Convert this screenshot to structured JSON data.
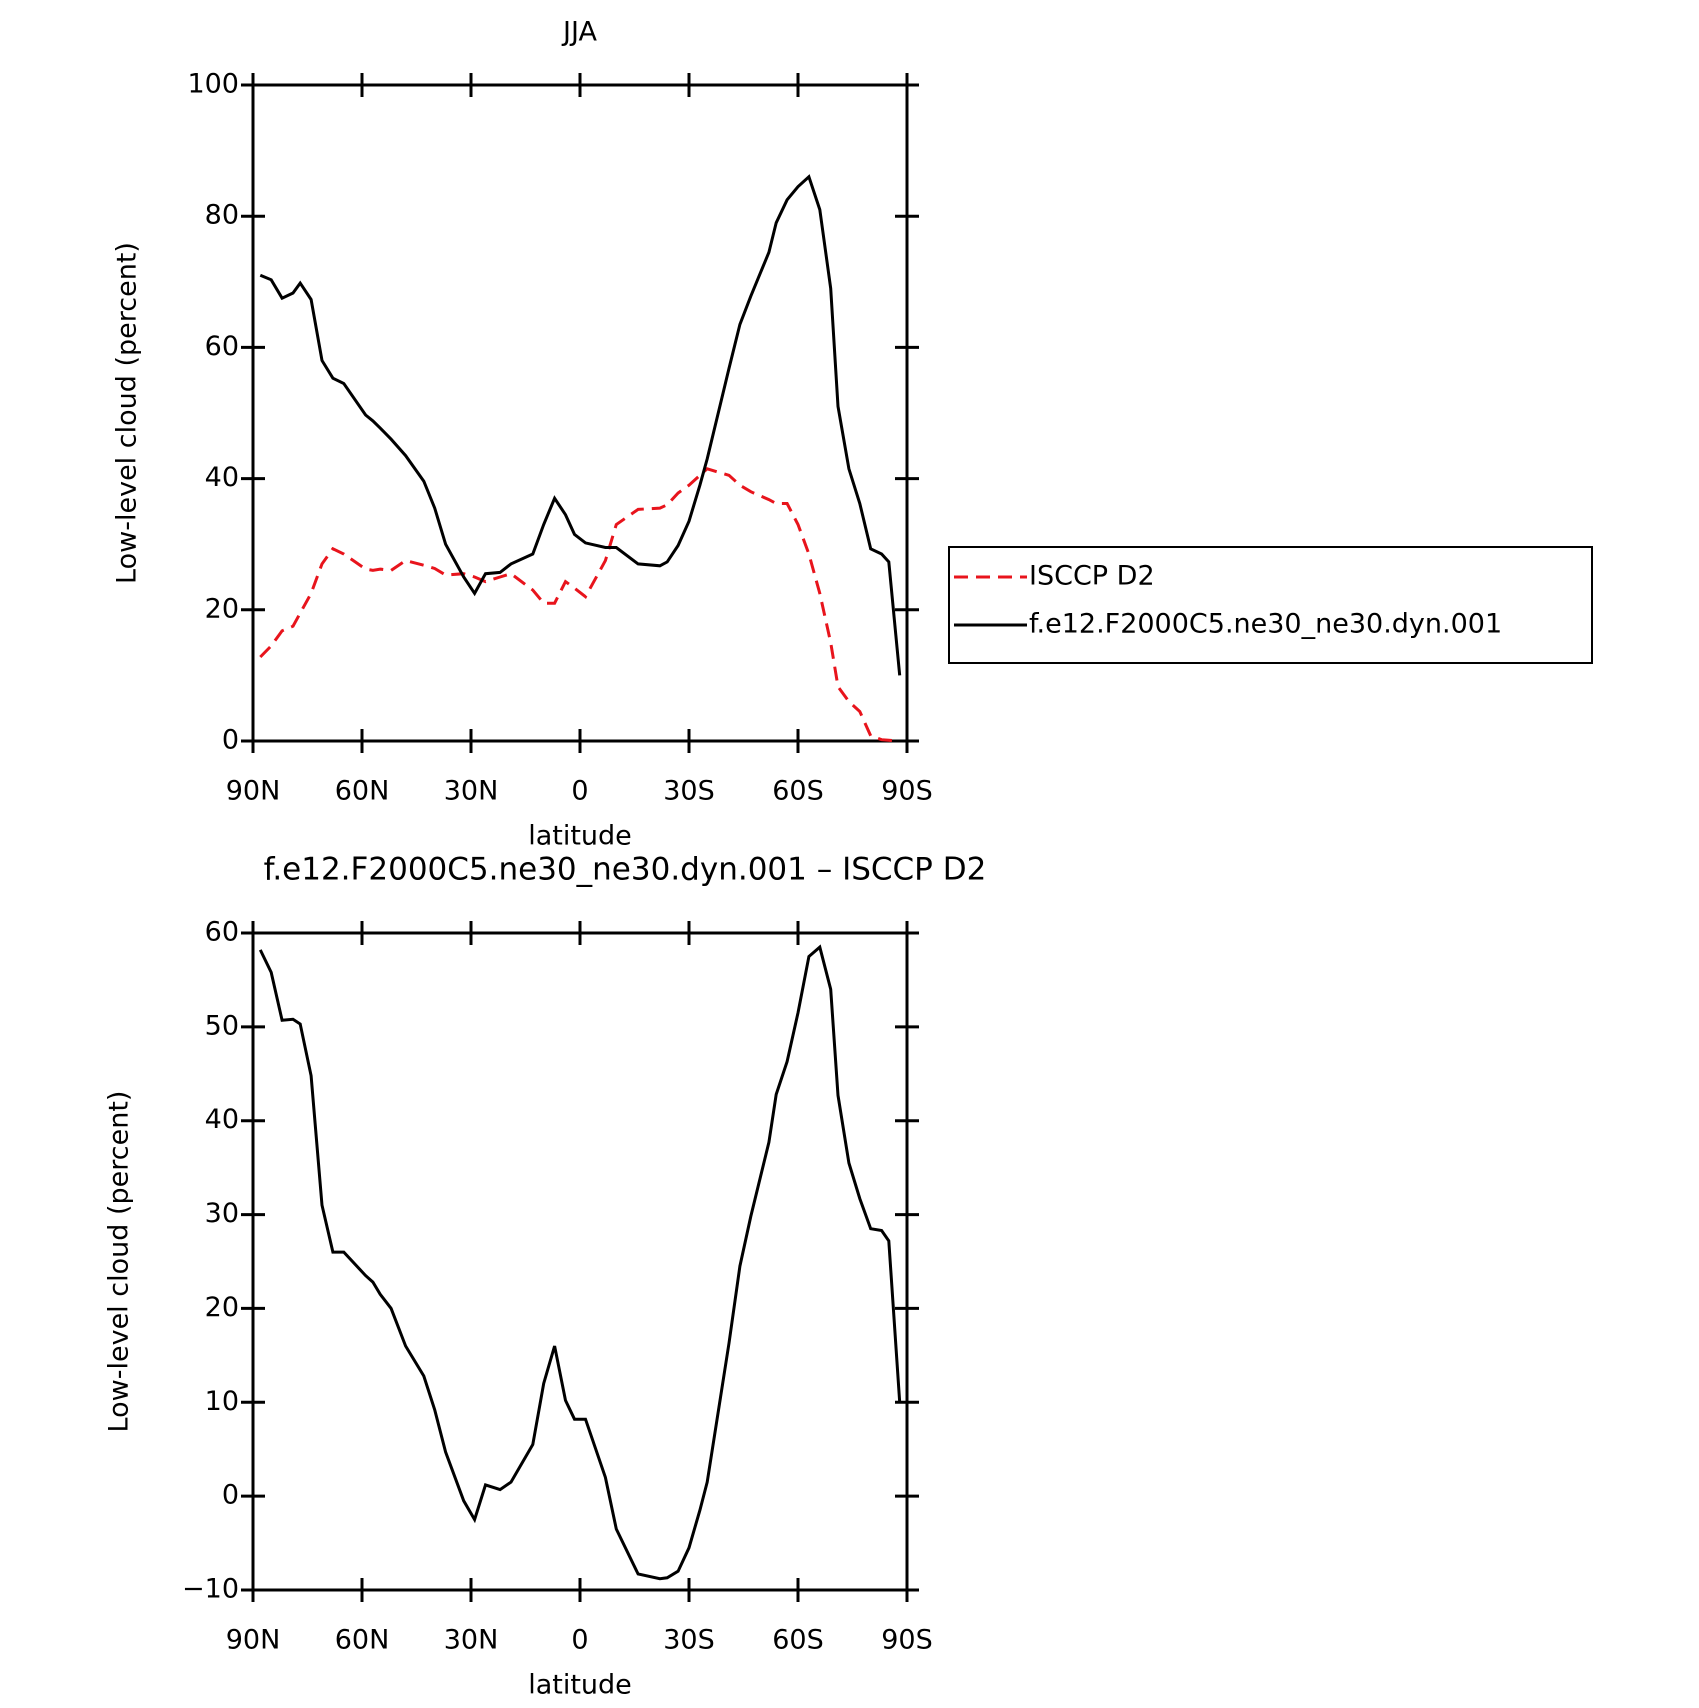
{
  "chart_data": [
    {
      "type": "line",
      "title": "JJA",
      "xlabel": "latitude",
      "ylabel": "Low-level cloud (percent)",
      "x": [
        88,
        85,
        82,
        79,
        77,
        74,
        71,
        68,
        65,
        59,
        57,
        55,
        52,
        48,
        43,
        40,
        37,
        32,
        29,
        26,
        22,
        19,
        13,
        10,
        7,
        4,
        1.5,
        -1.5,
        -7,
        -10,
        -16,
        -22,
        -24,
        -27,
        -30,
        -33,
        -35,
        -41,
        -44,
        -47,
        -52,
        -54,
        -57,
        -60,
        -63,
        -66,
        -69,
        -71,
        -74,
        -77,
        -80,
        -83,
        -85,
        -88
      ],
      "series": [
        {
          "name": "ISCCP D2",
          "color": "#e8141c",
          "line_style": "dashed",
          "values": [
            12.8,
            14.5,
            16.8,
            17.5,
            19.5,
            22.5,
            27,
            29.3,
            28.5,
            26.2,
            26,
            26.2,
            26,
            27.5,
            26.8,
            26.3,
            25.3,
            25.5,
            25,
            24.3,
            25,
            25.5,
            23,
            21,
            21,
            24.3,
            23.3,
            22,
            27.5,
            33,
            35.3,
            35.5,
            36,
            37.8,
            39,
            40.5,
            41.5,
            40.5,
            39,
            38,
            36.8,
            36.2,
            36.2,
            33,
            28.5,
            22.5,
            15,
            8.3,
            6,
            4.5,
            0.8,
            0.2,
            0.1,
            0
          ]
        },
        {
          "name": "f.e12.F2000C5.ne30_ne30.dyn.001",
          "color": "#000000",
          "line_style": "solid",
          "values": [
            71,
            70.3,
            67.5,
            68.3,
            69.8,
            67.3,
            58,
            55.3,
            54.5,
            49.7,
            48.8,
            47.7,
            46,
            43.5,
            39.6,
            35.5,
            30,
            25,
            22.5,
            25.5,
            25.7,
            27,
            28.5,
            33,
            37,
            34.5,
            31.5,
            30.2,
            29.5,
            29.5,
            27,
            26.7,
            27.3,
            29.8,
            33.5,
            39,
            43,
            56.8,
            63.5,
            67.8,
            74.5,
            79,
            82.5,
            84.5,
            86,
            81,
            69,
            51,
            41.5,
            36.2,
            29.3,
            28.5,
            27.3,
            10
          ]
        }
      ],
      "xlim": [
        90,
        -90
      ],
      "xticks": [
        {
          "value": 90,
          "label": "90N"
        },
        {
          "value": 60,
          "label": "60N"
        },
        {
          "value": 30,
          "label": "30N"
        },
        0,
        {
          "value": -30,
          "label": "30S"
        },
        {
          "value": -60,
          "label": "60S"
        },
        {
          "value": -90,
          "label": "90S"
        }
      ],
      "ylim": [
        0,
        100
      ],
      "yticks": [
        0,
        20,
        40,
        60,
        80,
        100
      ],
      "legend": "right"
    },
    {
      "type": "line",
      "title": "f.e12.F2000C5.ne30_ne30.dyn.001 – ISCCP D2",
      "xlabel": "latitude",
      "ylabel": "Low-level cloud (percent)",
      "x": [
        88,
        85,
        82,
        79,
        77,
        74,
        71,
        68,
        65,
        59,
        57,
        55,
        52,
        48,
        43,
        40,
        37,
        32,
        29,
        26,
        22,
        19,
        13,
        10,
        7,
        4,
        1.5,
        -1.5,
        -7,
        -10,
        -16,
        -22,
        -24,
        -27,
        -30,
        -33,
        -35,
        -41,
        -44,
        -47,
        -52,
        -54,
        -57,
        -60,
        -63,
        -66,
        -69,
        -71,
        -74,
        -77,
        -80,
        -83,
        -85,
        -88
      ],
      "series": [
        {
          "color": "#000000",
          "line_style": "solid",
          "values": [
            58.2,
            55.8,
            50.7,
            50.8,
            50.3,
            44.8,
            31,
            26,
            26,
            23.5,
            22.8,
            21.5,
            20,
            16,
            12.8,
            9.2,
            4.7,
            -0.5,
            -2.5,
            1.2,
            0.7,
            1.5,
            5.5,
            12,
            16,
            10.2,
            8.2,
            8.2,
            2,
            -3.5,
            -8.3,
            -8.8,
            -8.7,
            -8,
            -5.5,
            -1.5,
            1.5,
            16.3,
            24.5,
            29.8,
            37.7,
            42.8,
            46.3,
            51.5,
            57.5,
            58.5,
            54,
            42.7,
            35.5,
            31.7,
            28.5,
            28.3,
            27.2,
            10
          ]
        }
      ],
      "xlim": [
        90,
        -90
      ],
      "xticks": [
        {
          "value": 90,
          "label": "90N"
        },
        {
          "value": 60,
          "label": "60N"
        },
        {
          "value": 30,
          "label": "30N"
        },
        0,
        {
          "value": -30,
          "label": "30S"
        },
        {
          "value": -60,
          "label": "60S"
        },
        {
          "value": -90,
          "label": "90S"
        }
      ],
      "ylim": [
        -10,
        60
      ],
      "yticks": [
        {
          "value": -10,
          "label": "−10"
        },
        0,
        10,
        20,
        30,
        40,
        50,
        60
      ]
    }
  ]
}
